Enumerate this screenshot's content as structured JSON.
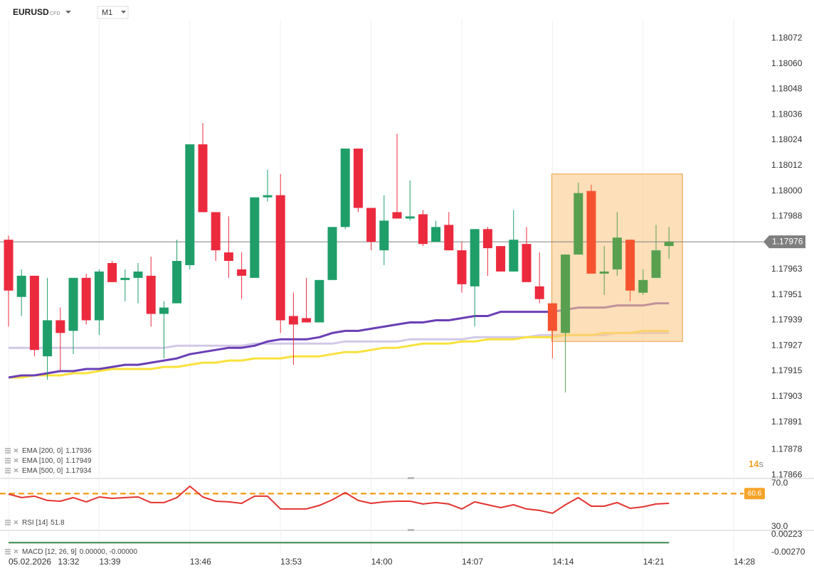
{
  "chart_data": [
    {
      "type": "candlestick",
      "symbol": "EURUSD",
      "instrument": "CFD",
      "timeframe": "M1",
      "countdown": 14,
      "countdown_unit": "s",
      "categories": [
        "05.02.2026 13:32",
        null,
        null,
        null,
        null,
        null,
        null,
        "13:39",
        null,
        null,
        null,
        null,
        null,
        null,
        "13:46",
        null,
        null,
        null,
        null,
        null,
        null,
        "13:53",
        null,
        null,
        null,
        null,
        null,
        null,
        "14:00",
        null,
        null,
        null,
        null,
        null,
        null,
        "14:07",
        null,
        null,
        null,
        null,
        null,
        null,
        "14:14",
        null,
        null,
        null,
        null,
        null,
        null,
        "14:21",
        null,
        null,
        null,
        null,
        null,
        null,
        "14:28"
      ],
      "open": [
        1.17977,
        1.1795,
        1.1796,
        1.17922,
        1.17939,
        1.17934,
        1.17959,
        1.17939,
        1.17966,
        1.17958,
        1.17959,
        1.1796,
        1.17942,
        1.17947,
        1.17965,
        1.18022,
        1.1799,
        1.17971,
        1.17963,
        1.17959,
        1.17997,
        1.17998,
        1.17941,
        1.1794,
        1.17938,
        1.17958,
        1.17983,
        1.1802,
        1.17992,
        1.17972,
        1.1799,
        1.17987,
        1.17989,
        1.17976,
        1.17984,
        1.17972,
        1.17955,
        1.17982,
        1.17974,
        1.17962,
        1.17975,
        1.17955,
        1.17947,
        1.17933,
        1.1797,
        1.18,
        1.17961,
        1.17963,
        1.17977,
        1.17952,
        1.17959,
        1.17974,
        null,
        null,
        null,
        null,
        null
      ],
      "high": [
        1.17979,
        1.17963,
        1.1796,
        1.17959,
        1.17945,
        1.17959,
        1.17961,
        1.17963,
        1.17967,
        1.17963,
        1.17966,
        1.17969,
        1.17948,
        1.17977,
        1.18022,
        1.18032,
        1.1799,
        1.17988,
        1.17971,
        1.17997,
        1.1801,
        1.18008,
        1.17952,
        1.17959,
        1.17958,
        1.17983,
        1.1802,
        1.1802,
        1.17992,
        1.17998,
        1.18027,
        1.18005,
        1.17991,
        1.17986,
        1.1799,
        1.17976,
        1.17982,
        1.17983,
        1.17974,
        1.17991,
        1.17983,
        1.17971,
        1.17947,
        1.1797,
        1.18004,
        1.18003,
        1.17974,
        1.1799,
        1.17977,
        1.17963,
        1.17984,
        1.17983,
        null,
        null,
        null,
        null,
        null
      ],
      "low": [
        1.17936,
        1.17941,
        1.17922,
        1.17911,
        1.17915,
        1.17923,
        1.17937,
        1.17932,
        1.17957,
        1.17948,
        1.17947,
        1.17936,
        1.17921,
        1.17947,
        1.17963,
        1.1799,
        1.17967,
        1.17959,
        1.17949,
        1.17959,
        1.17995,
        1.17933,
        1.17918,
        1.17938,
        1.17938,
        1.17958,
        1.17982,
        1.1799,
        1.17972,
        1.17965,
        1.17987,
        1.17986,
        1.17974,
        1.17976,
        1.17972,
        1.17952,
        1.17936,
        1.1796,
        1.17962,
        1.17962,
        1.17957,
        1.17947,
        1.17921,
        1.17905,
        1.1797,
        1.17961,
        1.17951,
        1.1796,
        1.17948,
        1.17951,
        1.17959,
        1.17968,
        null,
        null,
        null,
        null,
        null
      ],
      "close": [
        1.17953,
        1.1796,
        1.17925,
        1.17939,
        1.17933,
        1.17959,
        1.17939,
        1.17962,
        1.17957,
        1.17959,
        1.17962,
        1.17942,
        1.17945,
        1.17967,
        1.18022,
        1.1799,
        1.17972,
        1.17967,
        1.1796,
        1.17997,
        1.17998,
        1.17939,
        1.17937,
        1.17938,
        1.17958,
        1.17983,
        1.1802,
        1.17992,
        1.17976,
        1.17986,
        1.17987,
        1.17988,
        1.17975,
        1.17983,
        1.17972,
        1.17956,
        1.17982,
        1.17973,
        1.17962,
        1.17977,
        1.17957,
        1.17949,
        1.17934,
        1.1797,
        1.17999,
        1.17961,
        1.17962,
        1.17978,
        1.17953,
        1.17958,
        1.17972,
        1.17976,
        null,
        null,
        null,
        null,
        null
      ],
      "up_color": "#1f9e6a",
      "down_color": "#ec2a3e",
      "ylim": [
        1.178647,
        1.180807
      ],
      "yticks": [
        1.18072,
        {
          "value": 1.1806,
          "label": "1.18060"
        },
        1.18048,
        1.18036,
        1.18024,
        1.18012,
        {
          "value": 1.18,
          "label": "1.18000"
        },
        1.17988,
        1.17963,
        1.17951,
        1.17939,
        1.17927,
        1.17915,
        1.17903,
        1.17891,
        1.17878,
        1.17866
      ],
      "grid": true,
      "current_price": 1.17976,
      "current_price_color": "#7f7f7f",
      "highlight": {
        "from": 42,
        "to": 51,
        "ylim": [
          1.17929,
          1.18008
        ],
        "fill": "#fbc98a",
        "stroke": "#e9a048",
        "up_color": "#58a04f",
        "down_color": "#f5532f"
      },
      "series": [
        {
          "name": "EMA [200, 0]",
          "last_value": 1.17936,
          "color": "#f9e23c",
          "values": [
            1.17912,
            1.17912,
            1.17913,
            1.17913,
            1.17913,
            1.17914,
            1.17914,
            1.17915,
            1.17916,
            1.17916,
            1.17916,
            1.17916,
            1.17917,
            1.17917,
            1.17918,
            1.17919,
            1.17919,
            1.1792,
            1.1792,
            1.17921,
            1.17921,
            1.17921,
            1.17922,
            1.17922,
            1.17922,
            1.17923,
            1.17924,
            1.17924,
            1.17925,
            1.17926,
            1.17926,
            1.17927,
            1.17928,
            1.17928,
            1.17928,
            1.17929,
            1.17929,
            1.1793,
            1.1793,
            1.1793,
            1.17931,
            1.17931,
            1.17931,
            1.17932,
            1.17932,
            1.17932,
            1.17933,
            1.17933,
            1.17933,
            1.17934,
            1.17934,
            1.17934,
            null,
            null,
            null,
            null,
            null
          ]
        },
        {
          "name": "EMA [100, 0]",
          "last_value": 1.17949,
          "color": "#6a3fb5",
          "values": [
            1.17912,
            1.17913,
            1.17913,
            1.17914,
            1.17915,
            1.17915,
            1.17916,
            1.17916,
            1.17917,
            1.17918,
            1.17918,
            1.17919,
            1.1792,
            1.17921,
            1.17923,
            1.17924,
            1.17925,
            1.17926,
            1.17926,
            1.17927,
            1.17929,
            1.1793,
            1.1793,
            1.1793,
            1.17931,
            1.17933,
            1.17934,
            1.17934,
            1.17935,
            1.17936,
            1.17937,
            1.17938,
            1.17938,
            1.17939,
            1.17939,
            1.1794,
            1.17941,
            1.17941,
            1.17943,
            1.17943,
            1.17943,
            1.17943,
            1.17943,
            1.17944,
            1.17945,
            1.17945,
            1.17945,
            1.17946,
            1.17946,
            1.17946,
            1.17947,
            1.17947,
            null,
            null,
            null,
            null,
            null
          ]
        },
        {
          "name": "EMA [500, 0]",
          "last_value": 1.17934,
          "color": "#d2c9e8",
          "values": [
            1.17926,
            1.17926,
            1.17926,
            1.17926,
            1.17926,
            1.17926,
            1.17926,
            1.17926,
            1.17926,
            1.17926,
            1.17926,
            1.17926,
            1.17926,
            1.17927,
            1.17927,
            1.17927,
            1.17927,
            1.17927,
            1.17927,
            1.17928,
            1.17928,
            1.17928,
            1.17928,
            1.17928,
            1.17928,
            1.17928,
            1.17929,
            1.17929,
            1.17929,
            1.17929,
            1.17929,
            1.1793,
            1.1793,
            1.1793,
            1.1793,
            1.1793,
            1.17931,
            1.17931,
            1.17931,
            1.17931,
            1.17931,
            1.17932,
            1.17932,
            1.17932,
            1.17932,
            1.17932,
            1.17932,
            1.17933,
            1.17933,
            1.17933,
            1.17933,
            1.17933,
            null,
            null,
            null,
            null,
            null
          ]
        }
      ]
    },
    {
      "type": "line",
      "ylim": [
        26.7,
        73.9
      ],
      "yticks": [
        {
          "value": 70,
          "label": "70.0"
        },
        {
          "value": 30,
          "label": "30.0"
        }
      ],
      "level": 60.6,
      "level_color": "#f5a42a",
      "series": [
        {
          "name": "RSI [14]",
          "last_value": 51.8,
          "color": "#e3342f",
          "values": [
            60.2,
            56.9,
            58.2,
            54.3,
            53.6,
            56.9,
            53.0,
            57.5,
            56.2,
            56.9,
            57.5,
            52.3,
            52.3,
            56.9,
            67.4,
            57.5,
            53.6,
            53.0,
            51.6,
            58.2,
            58.2,
            46.4,
            46.4,
            46.4,
            49.7,
            54.9,
            61.5,
            54.3,
            51.6,
            53.0,
            53.6,
            53.6,
            51.0,
            52.3,
            51.0,
            46.4,
            53.0,
            50.3,
            47.7,
            50.3,
            46.4,
            45.1,
            42.5,
            50.3,
            56.9,
            49.0,
            49.0,
            52.3,
            47.0,
            48.4,
            51.0,
            51.6,
            null,
            null,
            null,
            null,
            null
          ]
        }
      ]
    },
    {
      "type": "line",
      "ylim": [
        -0.00408,
        0.00302
      ],
      "yticks": [
        0.00223,
        {
          "value": -0.0027,
          "label": "-0.00270"
        }
      ],
      "name": "MACD [12, 26, 9]",
      "legend_values": "0.00000, -0.00000",
      "series": [
        {
          "color": "#e05050",
          "values": [
            0,
            0,
            0,
            0,
            0,
            0,
            0,
            0,
            0,
            0,
            0,
            0,
            0,
            0,
            0,
            0,
            0,
            0,
            0,
            0,
            0,
            0,
            0,
            0,
            0,
            0,
            0,
            0,
            0,
            0,
            0,
            0,
            0,
            0,
            0,
            0,
            0,
            0,
            0,
            0,
            0,
            0,
            0,
            0,
            0,
            0,
            0,
            0,
            0,
            0,
            0,
            0,
            null,
            null,
            null,
            null,
            null
          ]
        },
        {
          "color": "#3a9a5b",
          "values": [
            0,
            0,
            0,
            0,
            0,
            0,
            0,
            0,
            0,
            0,
            0,
            0,
            0,
            0,
            0,
            0,
            0,
            0,
            0,
            0,
            0,
            0,
            0,
            0,
            0,
            0,
            0,
            0,
            0,
            0,
            0,
            0,
            0,
            0,
            0,
            0,
            0,
            0,
            0,
            0,
            0,
            0,
            0,
            0,
            0,
            0,
            0,
            0,
            0,
            0,
            0,
            0,
            null,
            null,
            null,
            null,
            null
          ]
        }
      ]
    }
  ]
}
